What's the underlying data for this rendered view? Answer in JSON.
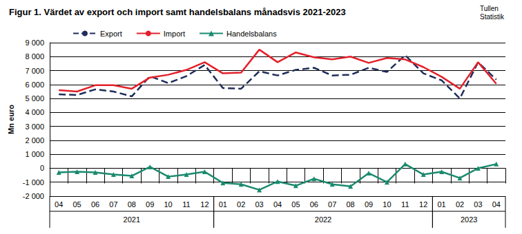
{
  "chart_data": {
    "type": "line",
    "title": "Figur 1. Värdet av export och import samt handelsbalans månadsvis 2021-2023",
    "source": [
      "Tullen",
      "Statistik"
    ],
    "y_label": "Mn euro",
    "categories": [
      "04",
      "05",
      "06",
      "07",
      "08",
      "09",
      "10",
      "11",
      "12",
      "01",
      "02",
      "03",
      "04",
      "05",
      "06",
      "07",
      "08",
      "09",
      "10",
      "11",
      "12",
      "01",
      "02",
      "03",
      "04"
    ],
    "category_groups": [
      "2021",
      "2021",
      "2021",
      "2021",
      "2021",
      "2021",
      "2021",
      "2021",
      "2021",
      "2022",
      "2022",
      "2022",
      "2022",
      "2022",
      "2022",
      "2022",
      "2022",
      "2022",
      "2022",
      "2022",
      "2022",
      "2023",
      "2023",
      "2023",
      "2023"
    ],
    "series": [
      {
        "name": "Export",
        "color": "#1f2d5a",
        "line_style": "dashed",
        "marker": "none",
        "values": [
          5300,
          5250,
          5650,
          5500,
          5150,
          6600,
          6100,
          6600,
          7400,
          5750,
          5700,
          6950,
          6650,
          7050,
          7200,
          6650,
          6700,
          7200,
          6900,
          8100,
          6800,
          6300,
          5000,
          7600,
          6350
        ]
      },
      {
        "name": "Import",
        "color": "#e3202a",
        "line_style": "solid",
        "marker": "none",
        "values": [
          5600,
          5500,
          5950,
          5950,
          5700,
          6500,
          6700,
          7050,
          7600,
          6800,
          6850,
          8500,
          7600,
          8300,
          7950,
          7800,
          8000,
          7550,
          7900,
          7800,
          7250,
          6550,
          5700,
          7600,
          6050
        ]
      },
      {
        "name": "Handelsbalans",
        "color": "#1a8a6e",
        "line_style": "solid",
        "marker": "triangle",
        "values": [
          -300,
          -250,
          -300,
          -450,
          -550,
          100,
          -600,
          -450,
          -250,
          -1050,
          -1150,
          -1550,
          -950,
          -1250,
          -750,
          -1150,
          -1300,
          -350,
          -1000,
          300,
          -450,
          -250,
          -700,
          0,
          300
        ]
      }
    ],
    "ylim": [
      -2000,
      9000
    ],
    "yticks": [
      {
        "value": -2000,
        "label": "-2 000"
      },
      {
        "value": -1000,
        "label": "-1 000"
      },
      0,
      {
        "value": 1000,
        "label": "1 000"
      },
      {
        "value": 2000,
        "label": "2 000"
      },
      {
        "value": 3000,
        "label": "3 000"
      },
      {
        "value": 4000,
        "label": "4 000"
      },
      {
        "value": 5000,
        "label": "5 000"
      },
      {
        "value": 6000,
        "label": "6 000"
      },
      {
        "value": 7000,
        "label": "7 000"
      },
      {
        "value": 8000,
        "label": "8 000"
      },
      {
        "value": 9000,
        "label": "9 000"
      }
    ],
    "grid": true,
    "legend": "top"
  }
}
